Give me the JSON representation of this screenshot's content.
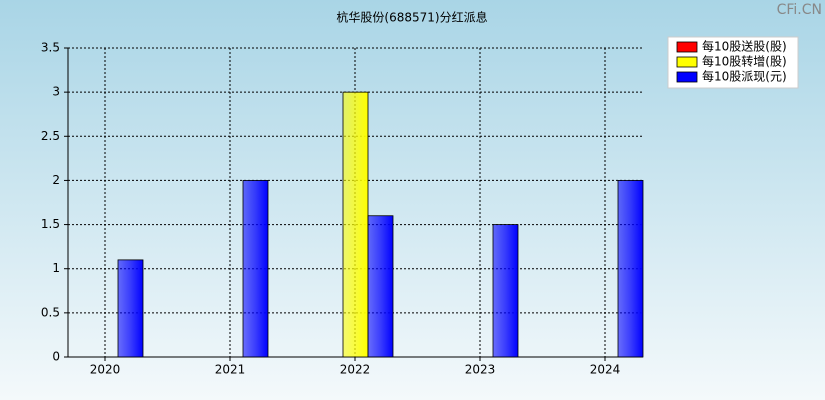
{
  "watermark": "CFi.CN",
  "chart_data": {
    "type": "bar",
    "title": "杭华股份(688571)分红派息",
    "categories": [
      "2020",
      "2021",
      "2022",
      "2023",
      "2024"
    ],
    "series": [
      {
        "name": "每10股送股(股)",
        "color": "#ff0000",
        "values": [
          0,
          0,
          0,
          0,
          0
        ]
      },
      {
        "name": "每10股转增(股)",
        "color": "#ffff00",
        "values": [
          0,
          0,
          3,
          0,
          0
        ]
      },
      {
        "name": "每10股派现(元)",
        "color": "#0000ff",
        "values": [
          1.1,
          2,
          1.6,
          1.5,
          2
        ]
      }
    ],
    "ylim": [
      0,
      3.5
    ],
    "yticks": [
      0,
      0.5,
      1,
      1.5,
      2,
      2.5,
      3,
      3.5
    ],
    "grid": true,
    "legend": "top-right"
  }
}
